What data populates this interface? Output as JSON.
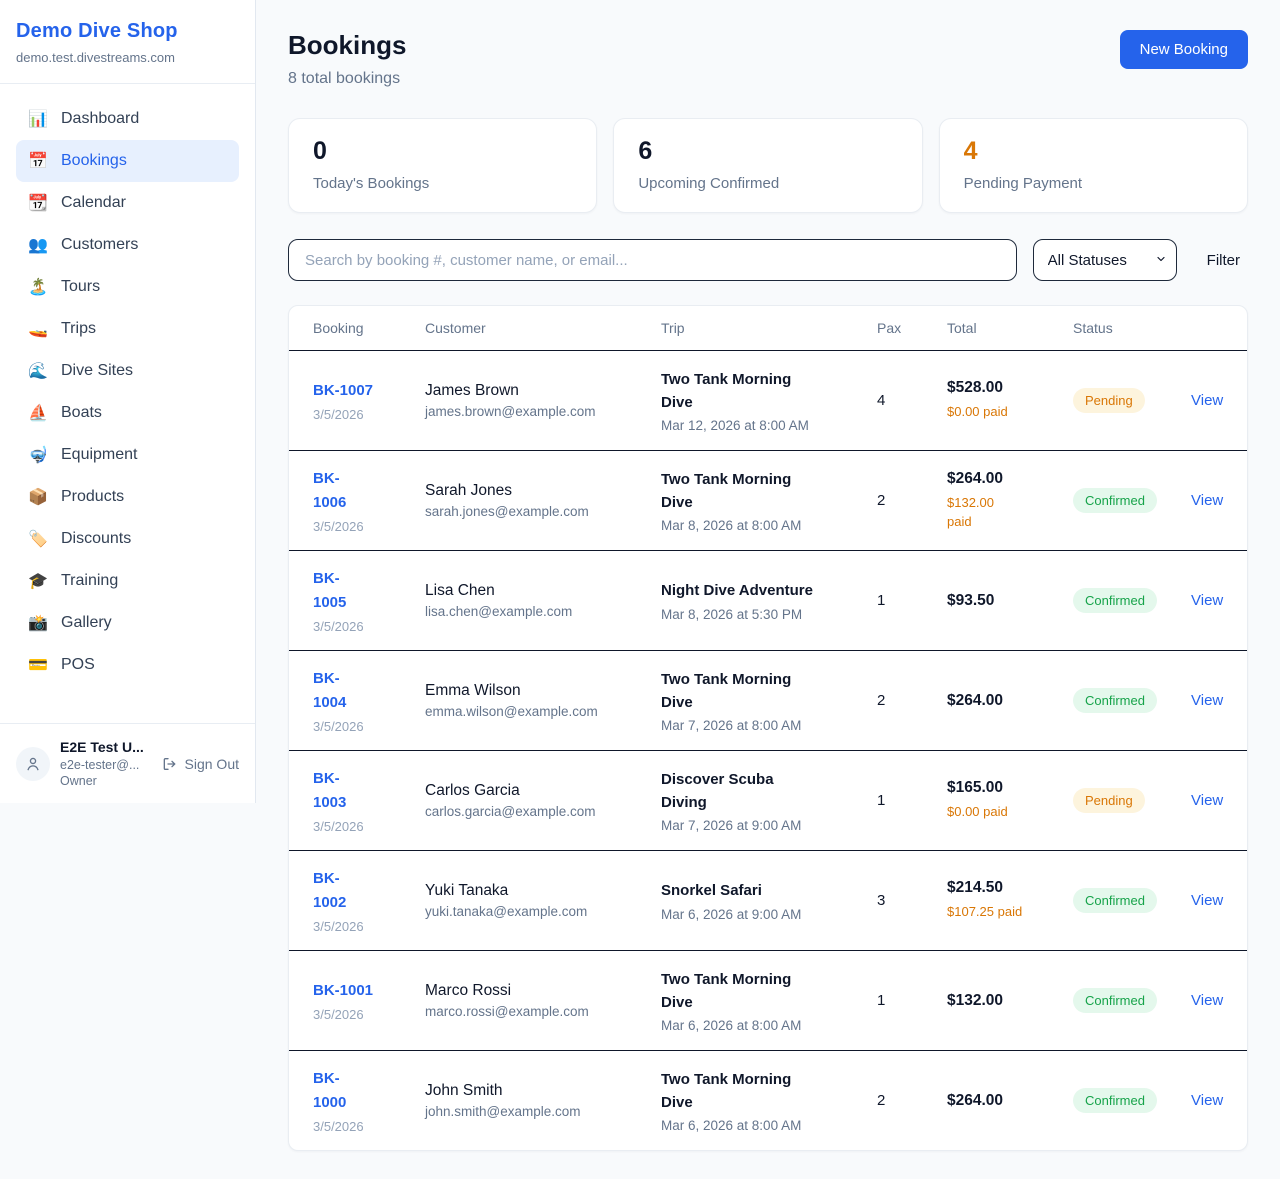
{
  "colors": {
    "brand_blue": "#2563eb",
    "page_background": "#f8fafc",
    "pending_text": "#d97706",
    "pending_bg": "#fdf4dd",
    "confirmed_text": "#16a34a",
    "confirmed_bg": "#e4f8ec",
    "dark_text": "#0f172a",
    "muted_text": "#64748b"
  },
  "sidebar": {
    "shop_name": "Demo Dive Shop",
    "shop_domain": "demo.test.divestreams.com",
    "nav": [
      {
        "name": "dashboard",
        "icon": "📊",
        "label": "Dashboard",
        "active": false
      },
      {
        "name": "bookings",
        "icon": "📅",
        "label": "Bookings",
        "active": true
      },
      {
        "name": "calendar",
        "icon": "📆",
        "label": "Calendar",
        "active": false
      },
      {
        "name": "customers",
        "icon": "👥",
        "label": "Customers",
        "active": false
      },
      {
        "name": "tours",
        "icon": "🏝️",
        "label": "Tours",
        "active": false
      },
      {
        "name": "trips",
        "icon": "🚤",
        "label": "Trips",
        "active": false
      },
      {
        "name": "dive-sites",
        "icon": "🌊",
        "label": "Dive Sites",
        "active": false
      },
      {
        "name": "boats",
        "icon": "⛵",
        "label": "Boats",
        "active": false
      },
      {
        "name": "equipment",
        "icon": "🤿",
        "label": "Equipment",
        "active": false
      },
      {
        "name": "products",
        "icon": "📦",
        "label": "Products",
        "active": false
      },
      {
        "name": "discounts",
        "icon": "🏷️",
        "label": "Discounts",
        "active": false
      },
      {
        "name": "training",
        "icon": "🎓",
        "label": "Training",
        "active": false
      },
      {
        "name": "gallery",
        "icon": "📸",
        "label": "Gallery",
        "active": false
      },
      {
        "name": "pos",
        "icon": "💳",
        "label": "POS",
        "active": false
      }
    ],
    "user": {
      "name": "E2E Test U...",
      "email": "e2e-tester@...",
      "role": "Owner",
      "sign_out_label": "Sign Out"
    }
  },
  "header": {
    "title": "Bookings",
    "subtitle": "8 total bookings",
    "new_booking_label": "New Booking"
  },
  "stats": [
    {
      "value": "0",
      "label": "Today's Bookings",
      "value_color": "#0f172a"
    },
    {
      "value": "6",
      "label": "Upcoming Confirmed",
      "value_color": "#0f172a"
    },
    {
      "value": "4",
      "label": "Pending Payment",
      "value_color": "#d97706"
    }
  ],
  "controls": {
    "search_placeholder": "Search by booking #, customer name, or email...",
    "status_filter_value": "All Statuses",
    "filter_label": "Filter"
  },
  "table": {
    "columns": [
      "Booking",
      "Customer",
      "Trip",
      "Pax",
      "Total",
      "Status"
    ],
    "status_styles": {
      "Pending": {
        "bg": "#fdf4dd",
        "text": "#d97706"
      },
      "Confirmed": {
        "bg": "#e4f8ec",
        "text": "#16a34a"
      }
    },
    "rows": [
      {
        "id": "BK-1007",
        "id_two_line": false,
        "booked_date": "3/5/2026",
        "customer_name": "James Brown",
        "customer_email": "james.brown@example.com",
        "trip_name": "Two Tank Morning Dive",
        "trip_datetime": "Mar 12, 2026 at 8:00 AM",
        "pax": "4",
        "total": "$528.00",
        "paid": "$0.00 paid",
        "paid_two_line": false,
        "status": "Pending",
        "action": "View"
      },
      {
        "id": "BK-1006",
        "id_two_line": true,
        "booked_date": "3/5/2026",
        "customer_name": "Sarah Jones",
        "customer_email": "sarah.jones@example.com",
        "trip_name": "Two Tank Morning Dive",
        "trip_datetime": "Mar 8, 2026 at 8:00 AM",
        "pax": "2",
        "total": "$264.00",
        "paid": "$132.00 paid",
        "paid_two_line": true,
        "status": "Confirmed",
        "action": "View"
      },
      {
        "id": "BK-1005",
        "id_two_line": true,
        "booked_date": "3/5/2026",
        "customer_name": "Lisa Chen",
        "customer_email": "lisa.chen@example.com",
        "trip_name": "Night Dive Adventure",
        "trip_datetime": "Mar 8, 2026 at 5:30 PM",
        "pax": "1",
        "total": "$93.50",
        "paid": null,
        "paid_two_line": false,
        "status": "Confirmed",
        "action": "View"
      },
      {
        "id": "BK-1004",
        "id_two_line": true,
        "booked_date": "3/5/2026",
        "customer_name": "Emma Wilson",
        "customer_email": "emma.wilson@example.com",
        "trip_name": "Two Tank Morning Dive",
        "trip_datetime": "Mar 7, 2026 at 8:00 AM",
        "pax": "2",
        "total": "$264.00",
        "paid": null,
        "paid_two_line": false,
        "status": "Confirmed",
        "action": "View"
      },
      {
        "id": "BK-1003",
        "id_two_line": true,
        "booked_date": "3/5/2026",
        "customer_name": "Carlos Garcia",
        "customer_email": "carlos.garcia@example.com",
        "trip_name": "Discover Scuba Diving",
        "trip_datetime": "Mar 7, 2026 at 9:00 AM",
        "pax": "1",
        "total": "$165.00",
        "paid": "$0.00 paid",
        "paid_two_line": false,
        "status": "Pending",
        "action": "View"
      },
      {
        "id": "BK-1002",
        "id_two_line": true,
        "booked_date": "3/5/2026",
        "customer_name": "Yuki Tanaka",
        "customer_email": "yuki.tanaka@example.com",
        "trip_name": "Snorkel Safari",
        "trip_datetime": "Mar 6, 2026 at 9:00 AM",
        "pax": "3",
        "total": "$214.50",
        "paid": "$107.25 paid",
        "paid_two_line": false,
        "status": "Confirmed",
        "action": "View"
      },
      {
        "id": "BK-1001",
        "id_two_line": false,
        "booked_date": "3/5/2026",
        "customer_name": "Marco Rossi",
        "customer_email": "marco.rossi@example.com",
        "trip_name": "Two Tank Morning Dive",
        "trip_datetime": "Mar 6, 2026 at 8:00 AM",
        "pax": "1",
        "total": "$132.00",
        "paid": null,
        "paid_two_line": false,
        "status": "Confirmed",
        "action": "View"
      },
      {
        "id": "BK-1000",
        "id_two_line": true,
        "booked_date": "3/5/2026",
        "customer_name": "John Smith",
        "customer_email": "john.smith@example.com",
        "trip_name": "Two Tank Morning Dive",
        "trip_datetime": "Mar 6, 2026 at 8:00 AM",
        "pax": "2",
        "total": "$264.00",
        "paid": null,
        "paid_two_line": false,
        "status": "Confirmed",
        "action": "View"
      }
    ]
  }
}
